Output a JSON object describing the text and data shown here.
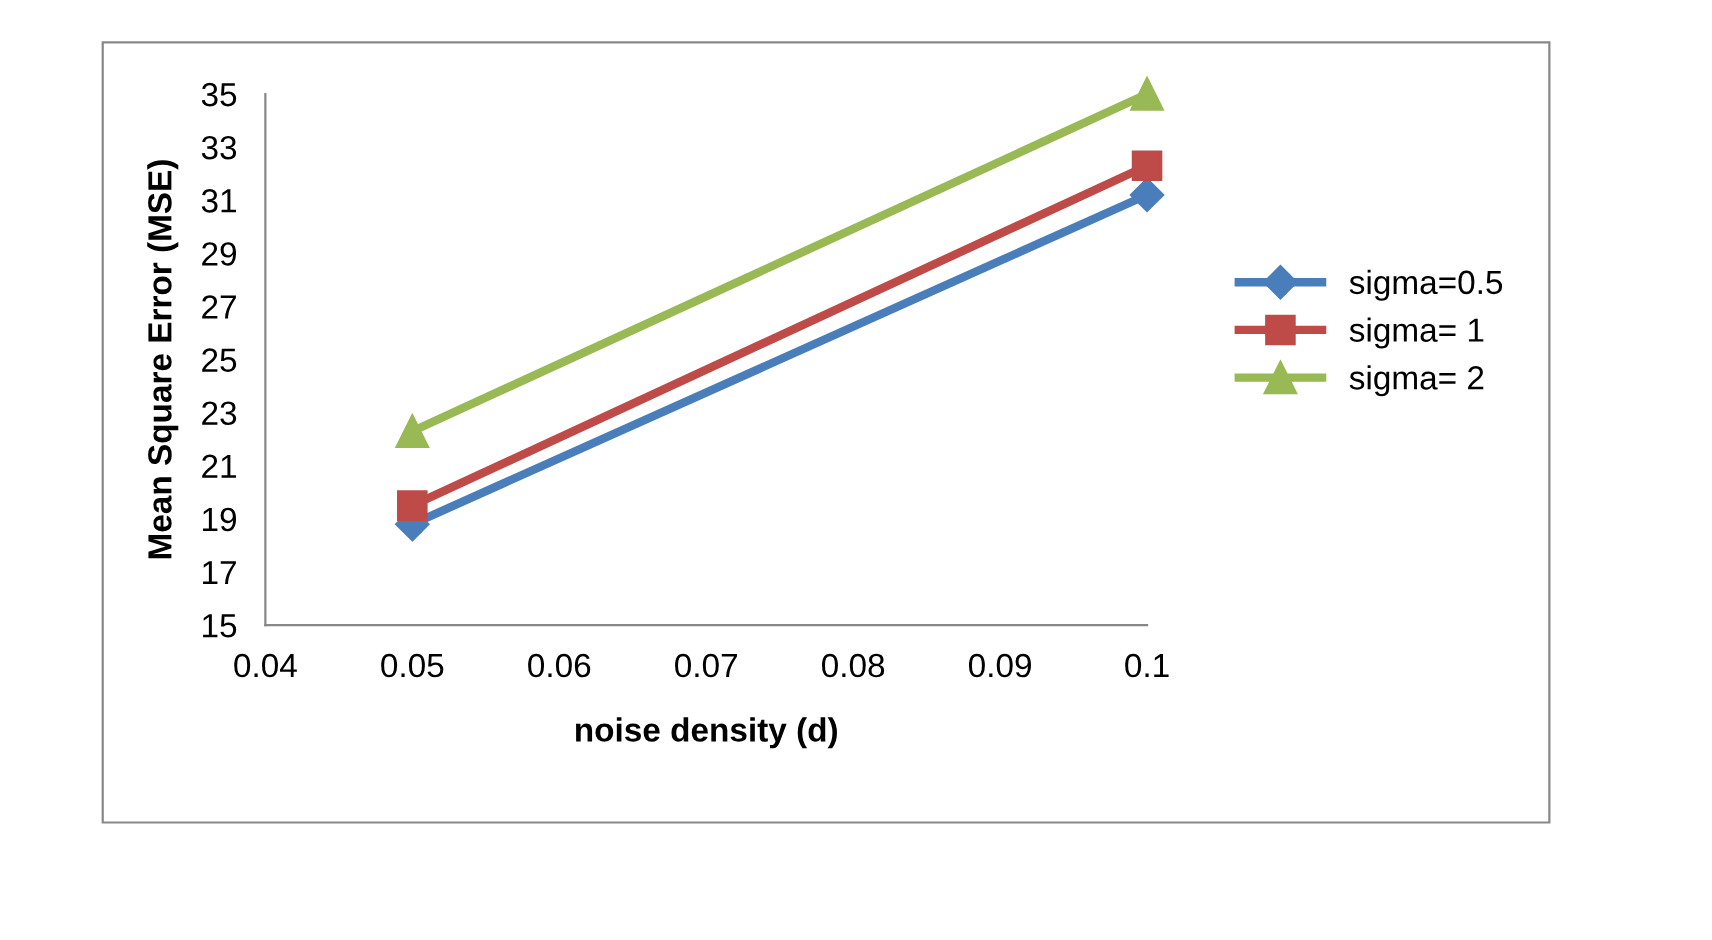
{
  "chart_data": {
    "type": "line",
    "xlabel": "noise density (d)",
    "ylabel": "Mean Square Error (MSE)",
    "x": [
      0.05,
      0.1
    ],
    "series": [
      {
        "name": "sigma=0.5",
        "color": "#4a7ebb",
        "marker": "diamond",
        "values": [
          18.8,
          31.2
        ]
      },
      {
        "name": "sigma= 1",
        "color": "#be4b48",
        "marker": "square",
        "values": [
          19.5,
          32.3
        ]
      },
      {
        "name": "sigma= 2",
        "color": "#98b954",
        "marker": "triangle",
        "values": [
          22.3,
          35
        ]
      }
    ],
    "xlim": [
      0.04,
      0.1
    ],
    "xticks": [
      {
        "value": 0.04,
        "label": "0.04"
      },
      {
        "value": 0.05,
        "label": "0.05"
      },
      {
        "value": 0.06,
        "label": "0.06"
      },
      {
        "value": 0.07,
        "label": "0.07"
      },
      {
        "value": 0.08,
        "label": "0.08"
      },
      {
        "value": 0.09,
        "label": "0.09"
      },
      {
        "value": 0.1,
        "label": "0.1"
      }
    ],
    "ylim": [
      15,
      35
    ],
    "yticks": [
      15,
      17,
      19,
      21,
      23,
      25,
      27,
      29,
      31,
      33,
      35
    ],
    "grid": false,
    "legend": "right",
    "line_style": "solid"
  }
}
